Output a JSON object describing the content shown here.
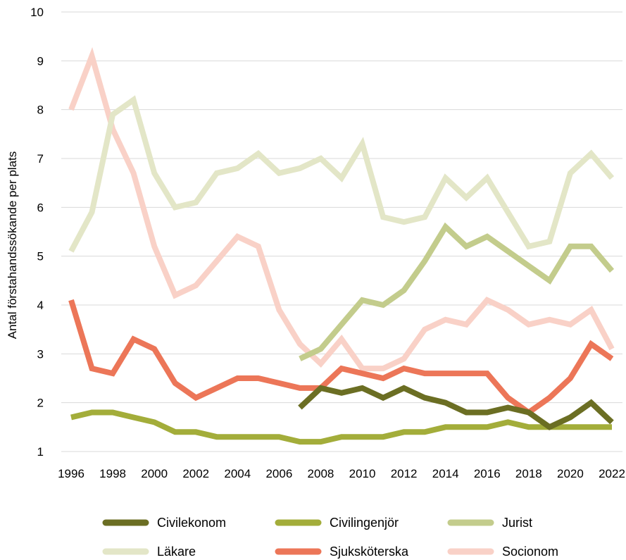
{
  "chart_data": {
    "type": "line",
    "ylabel": "Antal förstahandssökande per plats",
    "xlabel": "",
    "ylim": [
      1,
      10
    ],
    "yticks": [
      1,
      2,
      3,
      4,
      5,
      6,
      7,
      8,
      9,
      10
    ],
    "xlim": [
      1996,
      2022
    ],
    "xticks": [
      1996,
      1998,
      2000,
      2002,
      2004,
      2006,
      2008,
      2010,
      2012,
      2014,
      2016,
      2018,
      2020,
      2022
    ],
    "grid": "horizontal",
    "legend_position": "bottom",
    "x": [
      1996,
      1997,
      1998,
      1999,
      2000,
      2001,
      2002,
      2003,
      2004,
      2005,
      2006,
      2007,
      2008,
      2009,
      2010,
      2011,
      2012,
      2013,
      2014,
      2015,
      2016,
      2017,
      2018,
      2019,
      2020,
      2021,
      2022
    ],
    "series": [
      {
        "name": "Civilekonom",
        "color": "#6b6e23",
        "values": [
          null,
          null,
          null,
          null,
          null,
          null,
          null,
          null,
          null,
          null,
          null,
          1.9,
          2.3,
          2.2,
          2.3,
          2.1,
          2.3,
          2.1,
          2.0,
          1.8,
          1.8,
          1.9,
          1.8,
          1.5,
          1.7,
          2.0,
          1.6
        ]
      },
      {
        "name": "Civilingenjör",
        "color": "#a3ad3a",
        "values": [
          1.7,
          1.8,
          1.8,
          1.7,
          1.6,
          1.4,
          1.4,
          1.3,
          1.3,
          1.3,
          1.3,
          1.2,
          1.2,
          1.3,
          1.3,
          1.3,
          1.4,
          1.4,
          1.5,
          1.5,
          1.5,
          1.6,
          1.5,
          1.5,
          1.5,
          1.5,
          1.5
        ]
      },
      {
        "name": "Jurist",
        "color": "#c3cc8c",
        "values": [
          null,
          null,
          null,
          null,
          null,
          null,
          null,
          null,
          null,
          null,
          null,
          2.9,
          3.1,
          3.6,
          4.1,
          4.0,
          4.3,
          4.9,
          5.6,
          5.2,
          5.4,
          5.1,
          4.8,
          4.5,
          5.2,
          5.2,
          4.7
        ]
      },
      {
        "name": "Läkare",
        "color": "#e3e6c7",
        "values": [
          5.1,
          5.9,
          7.9,
          8.2,
          6.7,
          6.0,
          6.1,
          6.7,
          6.8,
          7.1,
          6.7,
          6.8,
          7.0,
          6.6,
          7.3,
          5.8,
          5.7,
          5.8,
          6.6,
          6.2,
          6.6,
          5.9,
          5.2,
          5.3,
          6.7,
          7.1,
          6.6
        ]
      },
      {
        "name": "Sjuksköterska",
        "color": "#ec7658",
        "values": [
          4.1,
          2.7,
          2.6,
          3.3,
          3.1,
          2.4,
          2.1,
          2.3,
          2.5,
          2.5,
          2.4,
          2.3,
          2.3,
          2.7,
          2.6,
          2.5,
          2.7,
          2.6,
          2.6,
          2.6,
          2.6,
          2.1,
          1.8,
          2.1,
          2.5,
          3.2,
          2.9
        ]
      },
      {
        "name": "Socionom",
        "color": "#f9d1c7",
        "values": [
          8.0,
          9.1,
          7.6,
          6.7,
          5.2,
          4.2,
          4.4,
          4.9,
          5.4,
          5.2,
          3.9,
          3.2,
          2.8,
          3.3,
          2.7,
          2.7,
          2.9,
          3.5,
          3.7,
          3.6,
          4.1,
          3.9,
          3.6,
          3.7,
          3.6,
          3.9,
          3.1
        ]
      }
    ]
  }
}
